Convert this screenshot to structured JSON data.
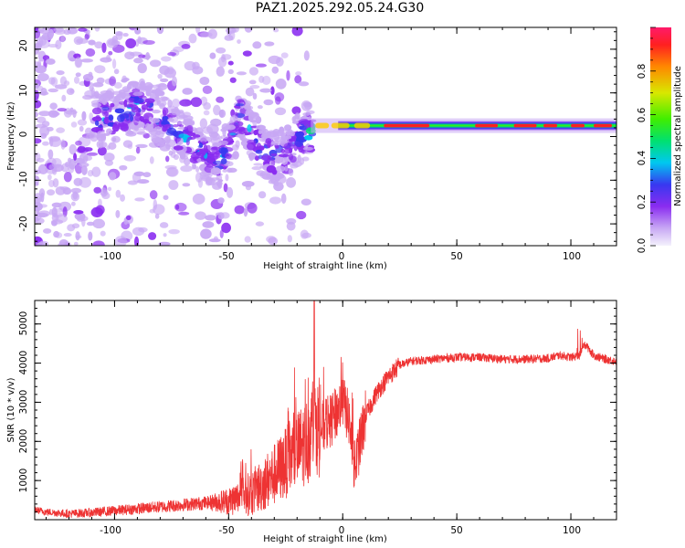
{
  "title": "PAZ1.2025.292.05.24.G30",
  "colors": {
    "line": "#ee3333",
    "frame": "#000000",
    "blob_light": "#d8c8f4",
    "blob_mid": "#9a5cf0",
    "blob_dark": "#6a10e0"
  },
  "chart_data": [
    {
      "type": "heatmap",
      "title": "PAZ1.2025.292.05.24.G30",
      "xlabel": "Height of straight line (km)",
      "ylabel": "Frequency (Hz)",
      "xlim": [
        -135,
        120
      ],
      "ylim": [
        -25,
        25
      ],
      "xticks": [
        -100,
        -50,
        0,
        50,
        100
      ],
      "xtick_labels": [
        "-100",
        "-50",
        "0",
        "50",
        "100"
      ],
      "yticks": [
        -20,
        -10,
        0,
        10,
        20
      ],
      "ytick_labels": [
        "-20",
        "-10",
        "0",
        "10",
        "20"
      ],
      "colorbar": {
        "label": "Normalized spectral amplitude",
        "range": [
          0,
          1
        ],
        "ticks": [
          0,
          0.2,
          0.4,
          0.6,
          0.8
        ],
        "tick_labels": [
          "0.0",
          "0.2",
          "0.4",
          "0.6",
          "0.8"
        ],
        "colormap": [
          "#f4f2fc",
          "#c8a8f4",
          "#8a2cf0",
          "#3838f0",
          "#00c8f0",
          "#00e070",
          "#40ee00",
          "#d8e800",
          "#ff8800",
          "#ff2020",
          "#ff1a6a"
        ]
      },
      "ridge": {
        "x": [
          -105,
          -98,
          -90,
          -85,
          -80,
          -75,
          -70,
          -65,
          -60,
          -55,
          -50,
          -45,
          -40,
          -35,
          -30,
          -25,
          -20,
          -15,
          -10,
          -5,
          0,
          10,
          20,
          40,
          60,
          80,
          100,
          120
        ],
        "freq": [
          4,
          5,
          7,
          6,
          4,
          2,
          0,
          -2,
          -4,
          -6,
          -3,
          5,
          0,
          -3,
          -5,
          -4,
          -1,
          1,
          2,
          2,
          4,
          2,
          2,
          2,
          2,
          2,
          2,
          2
        ],
        "amplitude": [
          0.35,
          0.35,
          0.4,
          0.3,
          0.3,
          0.3,
          0.35,
          0.35,
          0.35,
          0.3,
          0.35,
          0.4,
          0.35,
          0.4,
          0.35,
          0.3,
          0.4,
          0.45,
          0.5,
          0.55,
          0.6,
          0.65,
          0.85,
          0.85,
          0.85,
          0.85,
          0.85,
          0.85
        ]
      }
    },
    {
      "type": "line",
      "xlabel": "Height of straight line (km)",
      "ylabel": "SNR (10 * v/v)",
      "xlim": [
        -135,
        120
      ],
      "ylim": [
        0,
        5600
      ],
      "xticks": [
        -100,
        -50,
        0,
        50,
        100
      ],
      "xtick_labels": [
        "-100",
        "-50",
        "0",
        "50",
        "100"
      ],
      "yticks": [
        1000,
        2000,
        3000,
        4000,
        5000
      ],
      "ytick_labels": [
        "1000",
        "2000",
        "3000",
        "4000",
        "5000"
      ],
      "x": [
        -135,
        -130,
        -120,
        -110,
        -100,
        -90,
        -80,
        -70,
        -60,
        -50,
        -40,
        -35,
        -30,
        -25,
        -20,
        -15,
        -13,
        -10,
        -5,
        -3,
        0,
        3,
        5,
        10,
        15,
        20,
        25,
        30,
        40,
        50,
        60,
        70,
        80,
        90,
        95,
        100,
        104,
        106,
        110,
        115,
        120
      ],
      "y": [
        250,
        200,
        150,
        180,
        230,
        280,
        330,
        380,
        430,
        480,
        680,
        900,
        1150,
        1450,
        1750,
        2050,
        2450,
        2300,
        2550,
        2700,
        3050,
        2500,
        1250,
        2650,
        3250,
        3650,
        3950,
        4050,
        4100,
        4150,
        4150,
        4100,
        4100,
        4120,
        4200,
        4150,
        4200,
        4500,
        4200,
        4100,
        4050
      ],
      "color": "#ee3333"
    }
  ]
}
